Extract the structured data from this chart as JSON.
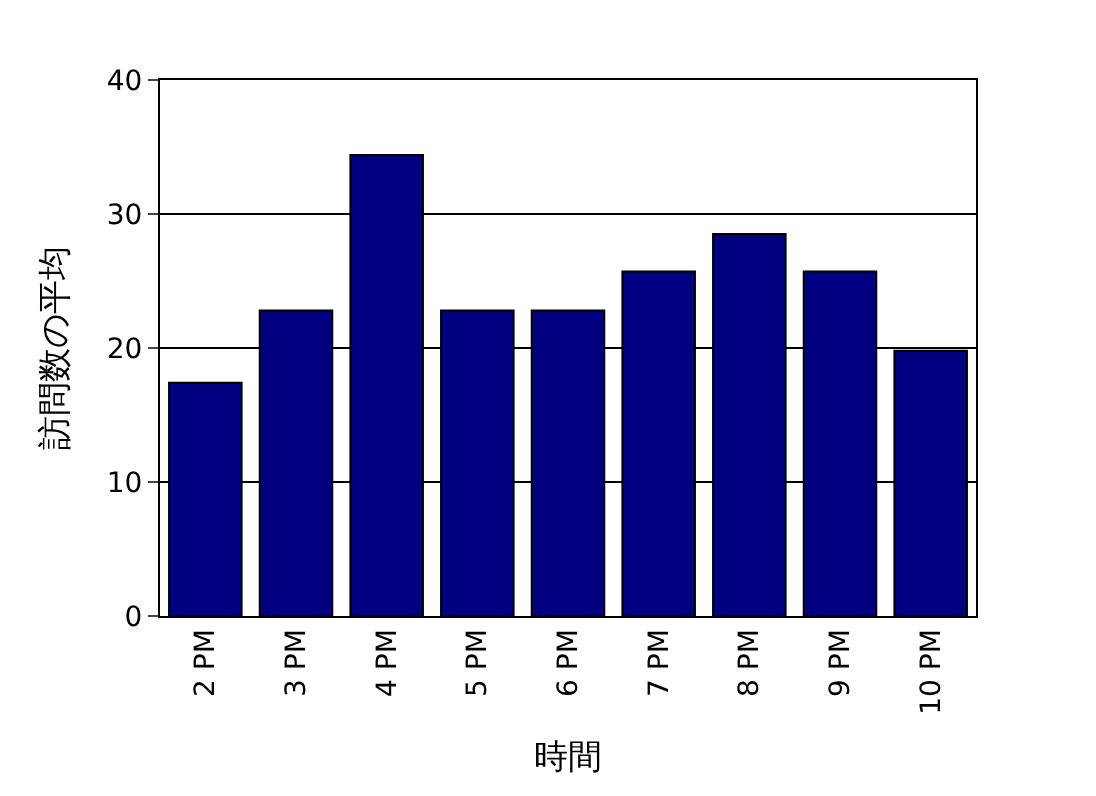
{
  "chart_data": {
    "type": "bar",
    "xlabel": "時間",
    "ylabel": "訪問数の平均",
    "categories": [
      "2 PM",
      "3 PM",
      "4 PM",
      "5 PM",
      "6 PM",
      "7 PM",
      "8 PM",
      "9 PM",
      "10 PM"
    ],
    "values": [
      17.4,
      22.8,
      34.4,
      22.8,
      22.8,
      25.7,
      28.5,
      25.7,
      19.8
    ],
    "color": "#000080",
    "ylim": [
      0,
      40
    ],
    "yticks": [
      0,
      10,
      20,
      30,
      40
    ],
    "grid": "y",
    "legend": false
  }
}
